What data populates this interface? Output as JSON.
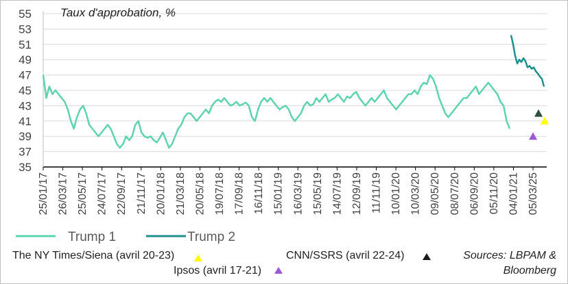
{
  "chart_data": {
    "type": "line",
    "title": "Taux d'approbation, %",
    "ylim": [
      35,
      55
    ],
    "yticks": [
      35,
      37,
      39,
      41,
      43,
      45,
      47,
      49,
      51,
      53,
      55
    ],
    "xlabels": [
      "25/01/17",
      "26/03/17",
      "25/05/17",
      "24/07/17",
      "22/09/17",
      "21/11/17",
      "20/01/18",
      "21/03/18",
      "20/05/18",
      "19/07/18",
      "17/09/18",
      "16/11/18",
      "15/01/19",
      "16/03/19",
      "15/05/19",
      "14/07/19",
      "12/09/19",
      "11/11/19",
      "10/01/20",
      "10/03/20",
      "09/05/20",
      "08/07/20",
      "06/09/20",
      "05/11/20",
      "04/01/21",
      "05/03/25"
    ],
    "series": [
      {
        "name": "Trump  1",
        "color": "#5ed3b0",
        "values": [
          47.0,
          44.0,
          45.5,
          44.5,
          45.0,
          44.5,
          44.0,
          43.5,
          42.5,
          41.0,
          40.0,
          41.5,
          42.5,
          43.0,
          42.0,
          40.5,
          40.0,
          39.5,
          39.0,
          39.5,
          40.0,
          40.5,
          40.0,
          39.0,
          38.0,
          37.5,
          38.0,
          39.0,
          38.5,
          39.0,
          40.5,
          41.0,
          39.5,
          39.0,
          38.8,
          39.0,
          38.5,
          38.2,
          38.8,
          39.5,
          38.5,
          37.5,
          38.0,
          39.0,
          40.0,
          40.5,
          41.5,
          42.0,
          42.0,
          41.5,
          41.0,
          41.5,
          42.0,
          42.5,
          42.0,
          43.0,
          43.5,
          43.8,
          43.5,
          44.0,
          43.5,
          43.0,
          43.2,
          43.5,
          43.0,
          43.2,
          43.4,
          43.0,
          41.5,
          41.0,
          42.5,
          43.5,
          44.0,
          43.5,
          44.0,
          43.5,
          43.0,
          42.5,
          42.8,
          43.0,
          42.5,
          41.5,
          41.0,
          41.5,
          42.0,
          43.0,
          43.5,
          43.0,
          43.2,
          44.0,
          43.5,
          44.0,
          44.5,
          43.5,
          43.8,
          44.0,
          44.5,
          44.0,
          43.5,
          44.2,
          44.0,
          44.5,
          44.8,
          44.0,
          43.5,
          43.0,
          43.5,
          44.0,
          43.5,
          44.0,
          44.5,
          45.0,
          44.0,
          43.5,
          43.0,
          42.5,
          43.0,
          43.5,
          44.0,
          44.5,
          44.5,
          45.0,
          44.5,
          45.5,
          46.0,
          45.8,
          47.0,
          46.5,
          45.5,
          44.0,
          43.0,
          42.0,
          41.5,
          42.0,
          42.5,
          43.0,
          43.5,
          44.0,
          44.0,
          44.5,
          45.0,
          45.5,
          44.5,
          45.0,
          45.5,
          46.0,
          45.5,
          45.0,
          44.5,
          43.5,
          43.0,
          41.0,
          40.0
        ]
      },
      {
        "name": "Trump 2",
        "color": "#1d8f8c",
        "values": [
          52.2,
          51.0,
          49.5,
          48.5,
          49.0,
          48.7,
          49.2,
          48.8,
          48.0,
          48.2,
          47.8,
          48.0,
          47.5,
          47.2,
          46.8,
          46.5,
          45.5
        ]
      }
    ],
    "legend": [
      "Trump  1",
      "Trump 2"
    ],
    "polls": [
      {
        "label": "The NY Times/Siena (avril 20-23)",
        "value": 41,
        "color": "#ffff00"
      },
      {
        "label": "Ipsos (avril 17-21)",
        "value": 39,
        "color": "#9b59d6"
      },
      {
        "label": "CNN/SSRS (avril 22-24)",
        "value": 42,
        "color": "#2f4f3f"
      }
    ],
    "source_line1": "Sources: LBPAM &",
    "source_line2": "Bloomberg"
  }
}
